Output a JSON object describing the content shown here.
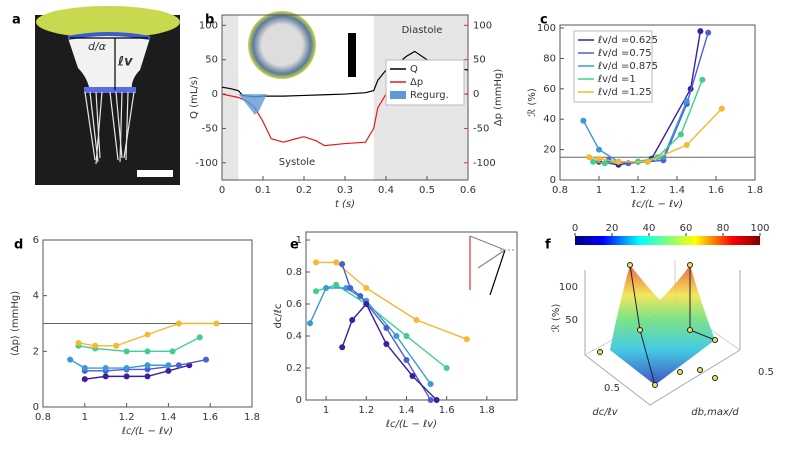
{
  "photo_panel": {
    "panel": "a",
    "width_label": "d/α",
    "length_label": "ℓv"
  },
  "chart_data": [
    {
      "type": "line",
      "panel": "b",
      "xlabel": "t (s)",
      "ylabel": "Q (mL/s)",
      "y2label": "Δp (mmHg)",
      "y2color": "#e0301e",
      "xlim": [
        0,
        0.6
      ],
      "xticks": [
        0,
        0.1,
        0.2,
        0.3,
        0.4,
        0.5,
        0.6
      ],
      "ylim": [
        -125,
        115
      ],
      "yticks": [
        -100,
        -50,
        0,
        50,
        100
      ],
      "y2lim": [
        -125,
        115
      ],
      "y2ticks": [
        -100,
        -50,
        0,
        50,
        100
      ],
      "shaded_x_ranges": [
        [
          0,
          0.04
        ],
        [
          0.37,
          0.6
        ]
      ],
      "annotations": [
        "Systole",
        "Diastole"
      ],
      "legend": "upper right",
      "series": [
        {
          "name": "Q",
          "color": "#000000",
          "x": [
            0,
            0.02,
            0.04,
            0.05,
            0.08,
            0.1,
            0.15,
            0.2,
            0.25,
            0.3,
            0.35,
            0.37,
            0.38,
            0.4,
            0.43,
            0.45,
            0.47,
            0.5,
            0.55,
            0.6
          ],
          "values": [
            10,
            8,
            5,
            -2,
            -4,
            -3,
            -3,
            -2,
            -1,
            0,
            2,
            5,
            20,
            35,
            45,
            55,
            62,
            50,
            40,
            35
          ]
        },
        {
          "name": "Δp",
          "color": "#e8171b",
          "axis": "y2",
          "x": [
            0,
            0.04,
            0.06,
            0.08,
            0.1,
            0.12,
            0.15,
            0.18,
            0.2,
            0.23,
            0.25,
            0.3,
            0.35,
            0.37,
            0.38,
            0.4,
            0.45,
            0.5,
            0.6
          ],
          "values": [
            0,
            -5,
            -10,
            -20,
            -40,
            -65,
            -70,
            -65,
            -62,
            -68,
            -75,
            -72,
            -70,
            -50,
            -20,
            0,
            0,
            0,
            0
          ]
        },
        {
          "name": "Regurg.",
          "type": "area",
          "color": "#5b9bd5",
          "x": [
            0.04,
            0.06,
            0.08,
            0.09,
            0.1,
            0.11
          ],
          "values": [
            0,
            -15,
            -30,
            -25,
            -12,
            0
          ]
        }
      ]
    },
    {
      "type": "line",
      "panel": "c",
      "xlabel": "ℓc/(L − ℓv)",
      "ylabel": "ℛ (%)",
      "xlim": [
        0.8,
        1.8
      ],
      "xticks": [
        0.8,
        1,
        1.2,
        1.4,
        1.6,
        1.8
      ],
      "ylim": [
        0,
        102
      ],
      "yticks": [
        0,
        20,
        40,
        60,
        80,
        100
      ],
      "reference_line": 15,
      "legend": "upper left",
      "series": [
        {
          "name": "ℓv/d =0.625",
          "color": "#3b1f9c",
          "x": [
            1.0,
            1.1,
            1.2,
            1.27,
            1.47,
            1.52
          ],
          "values": [
            12,
            10,
            12,
            14,
            60,
            98
          ]
        },
        {
          "name": "ℓv/d =0.75",
          "color": "#4a5fd6",
          "x": [
            1.05,
            1.15,
            1.25,
            1.33,
            1.45,
            1.56
          ],
          "values": [
            13,
            11,
            12,
            13,
            50,
            97
          ]
        },
        {
          "name": "ℓv/d =0.875",
          "color": "#3a9ad9",
          "x": [
            0.92,
            1.0,
            1.1,
            1.2,
            1.33,
            1.45
          ],
          "values": [
            39,
            20,
            12,
            12,
            15,
            52
          ]
        },
        {
          "name": "ℓv/d =1",
          "color": "#3fcf8a",
          "x": [
            0.97,
            1.03,
            1.1,
            1.2,
            1.3,
            1.42,
            1.53
          ],
          "values": [
            12,
            11,
            12,
            12,
            15,
            30,
            66
          ]
        },
        {
          "name": "ℓv/d =1.25",
          "color": "#f5b82e",
          "x": [
            0.95,
            1.0,
            1.1,
            1.25,
            1.45,
            1.63
          ],
          "values": [
            15,
            14,
            12,
            12,
            23,
            47
          ]
        }
      ]
    },
    {
      "type": "line",
      "panel": "d",
      "xlabel": "ℓc/(L − ℓv)",
      "ylabel": "⟨Δp⟩ (mmHg)",
      "xlim": [
        0.8,
        1.8
      ],
      "xticks": [
        0.8,
        1,
        1.2,
        1.4,
        1.6,
        1.8
      ],
      "ylim": [
        0,
        6
      ],
      "yticks": [
        0,
        2,
        4,
        6
      ],
      "reference_line": 3,
      "series": [
        {
          "color": "#3b1f9c",
          "x": [
            1.0,
            1.1,
            1.2,
            1.3,
            1.4,
            1.5
          ],
          "values": [
            1.0,
            1.1,
            1.1,
            1.1,
            1.3,
            1.5
          ]
        },
        {
          "color": "#4a5fd6",
          "x": [
            1.0,
            1.1,
            1.2,
            1.3,
            1.45,
            1.58
          ],
          "values": [
            1.3,
            1.3,
            1.35,
            1.35,
            1.5,
            1.7
          ]
        },
        {
          "color": "#3a9ad9",
          "x": [
            0.93,
            1.0,
            1.1,
            1.2,
            1.3,
            1.4
          ],
          "values": [
            1.7,
            1.4,
            1.4,
            1.4,
            1.5,
            1.5
          ]
        },
        {
          "color": "#3fcf8a",
          "x": [
            0.97,
            1.05,
            1.2,
            1.3,
            1.42,
            1.55
          ],
          "values": [
            2.2,
            2.1,
            2.0,
            2.0,
            2.0,
            2.5
          ]
        },
        {
          "color": "#f5b82e",
          "x": [
            0.97,
            1.05,
            1.15,
            1.3,
            1.45,
            1.63
          ],
          "values": [
            2.3,
            2.2,
            2.2,
            2.6,
            3.0,
            3.0
          ]
        }
      ]
    },
    {
      "type": "line",
      "panel": "e",
      "xlabel": "ℓc/(L − ℓv)",
      "ylabel": "dc/ℓc",
      "xlim": [
        0.9,
        1.95
      ],
      "xticks": [
        1,
        1.2,
        1.4,
        1.6,
        1.8
      ],
      "ylim": [
        0,
        1.05
      ],
      "yticks": [
        0,
        0.2,
        0.4,
        0.6,
        0.8,
        1
      ],
      "series": [
        {
          "color": "#f5b82e",
          "x": [
            0.95,
            1.05,
            1.2,
            1.45,
            1.7
          ],
          "values": [
            0.86,
            0.86,
            0.7,
            0.5,
            0.38
          ]
        },
        {
          "color": "#3fcf8a",
          "x": [
            0.95,
            1.05,
            1.2,
            1.4,
            1.6
          ],
          "values": [
            0.68,
            0.72,
            0.6,
            0.4,
            0.2
          ]
        },
        {
          "color": "#3a9ad9",
          "x": [
            0.92,
            1.0,
            1.1,
            1.2,
            1.35,
            1.52
          ],
          "values": [
            0.48,
            0.7,
            0.7,
            0.62,
            0.4,
            0.1
          ]
        },
        {
          "color": "#4a5fd6",
          "x": [
            1.08,
            1.12,
            1.17,
            1.3,
            1.4,
            1.52
          ],
          "values": [
            0.85,
            0.7,
            0.65,
            0.45,
            0.25,
            0.0
          ]
        },
        {
          "color": "#3b1f9c",
          "x": [
            1.08,
            1.13,
            1.2,
            1.3,
            1.43,
            1.55
          ],
          "values": [
            0.33,
            0.5,
            0.6,
            0.35,
            0.15,
            0.0
          ]
        }
      ]
    },
    {
      "type": "surface3d",
      "panel": "f",
      "zlabel": "ℛ (%)",
      "xlabel": "dc/ℓv",
      "ylabel": "db,max/d",
      "zticks": [
        50,
        100
      ],
      "xticks": [
        0.5
      ],
      "yticks": [
        0.5
      ],
      "clim": [
        0,
        100
      ],
      "colorbar_ticks": [
        0,
        20,
        40,
        60,
        80,
        100
      ],
      "colormap": "jet"
    }
  ]
}
